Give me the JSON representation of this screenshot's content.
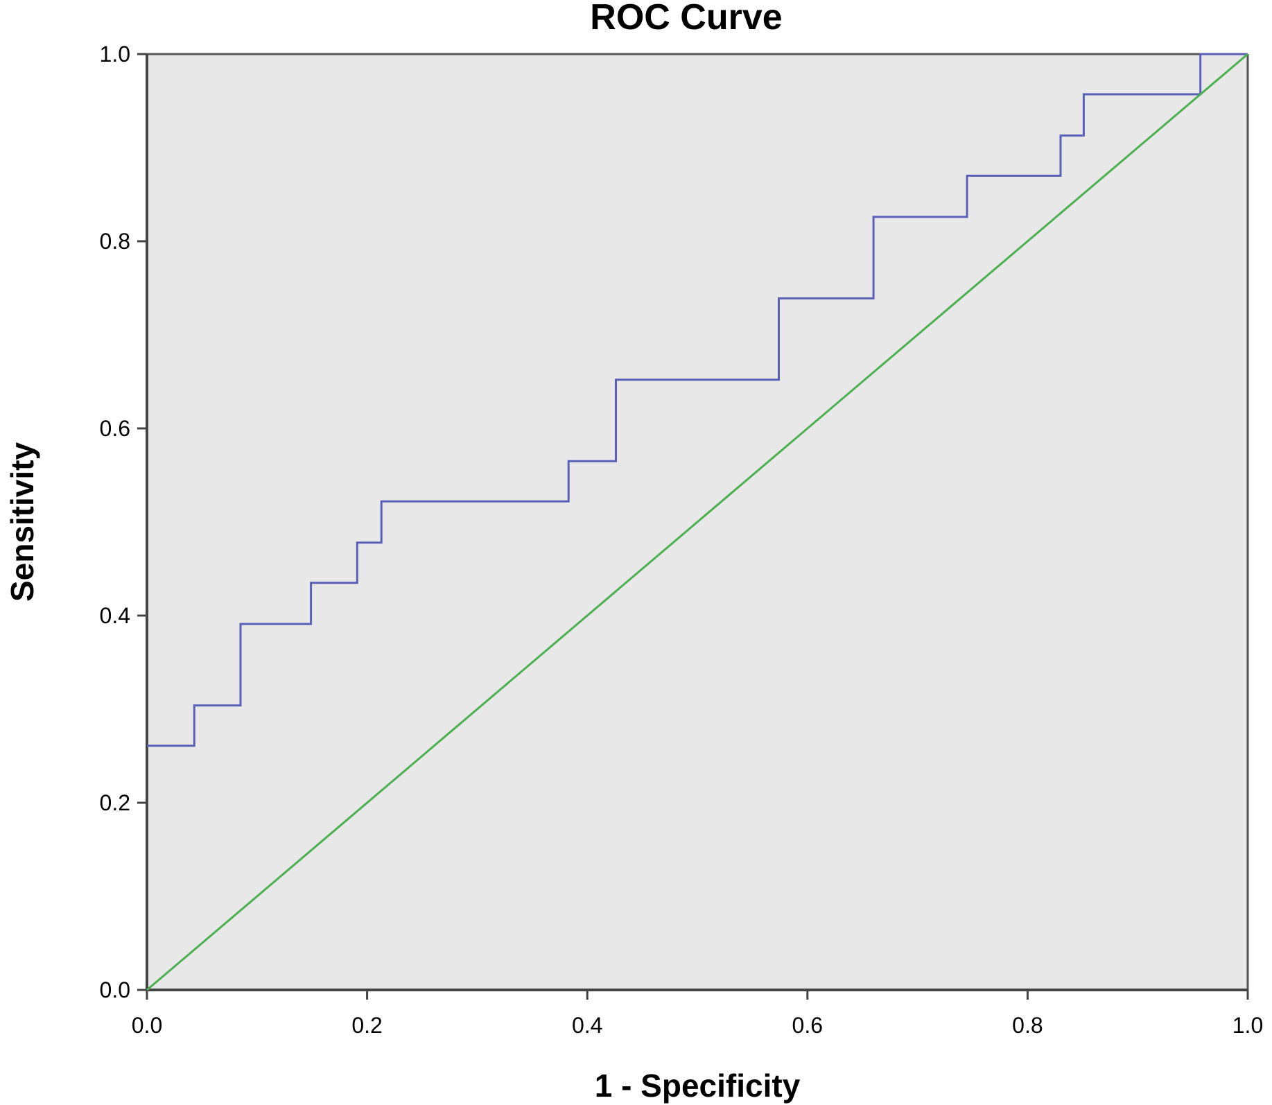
{
  "chart_data": {
    "type": "line",
    "title": "ROC Curve",
    "xlabel": "1 - Specificity",
    "ylabel": "Sensitivity",
    "xlim": [
      0.0,
      1.0
    ],
    "ylim": [
      0.0,
      1.0
    ],
    "x_ticks": [
      "0.0",
      "0.2",
      "0.4",
      "0.6",
      "0.8",
      "1.0"
    ],
    "y_ticks": [
      "0.0",
      "0.2",
      "0.4",
      "0.6",
      "0.8",
      "1.0"
    ],
    "grid": false,
    "legend": "none",
    "plot_background": "#e8e8e8",
    "series": [
      {
        "color": "#5a60b8",
        "line_style": "step",
        "x": [
          0.0,
          0.043,
          0.043,
          0.085,
          0.085,
          0.149,
          0.149,
          0.191,
          0.191,
          0.213,
          0.213,
          0.383,
          0.383,
          0.426,
          0.426,
          0.574,
          0.574,
          0.66,
          0.66,
          0.745,
          0.745,
          0.83,
          0.83,
          0.851,
          0.851,
          0.957,
          0.957,
          1.0
        ],
        "y": [
          0.261,
          0.261,
          0.304,
          0.304,
          0.391,
          0.391,
          0.435,
          0.435,
          0.478,
          0.478,
          0.522,
          0.522,
          0.565,
          0.565,
          0.652,
          0.652,
          0.739,
          0.739,
          0.826,
          0.826,
          0.87,
          0.87,
          0.913,
          0.913,
          0.957,
          0.957,
          1.0,
          1.0
        ]
      },
      {
        "color": "#4caf50",
        "line_style": "reference",
        "x": [
          0.0,
          1.0
        ],
        "y": [
          0.0,
          1.0
        ]
      }
    ]
  }
}
